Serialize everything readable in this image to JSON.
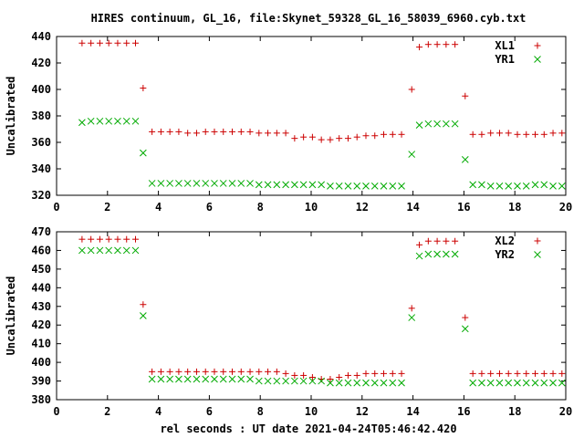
{
  "chart_data": {
    "title": "HIRES continuum, GL_16, file:Skynet_59328_GL_16_58039_6960.cyb.txt",
    "xlabel": "rel seconds : UT date 2021-04-24T05:46:42.420",
    "type": "scatter",
    "x": [
      1.0,
      1.35,
      1.7,
      2.05,
      2.4,
      2.75,
      3.1,
      3.4,
      3.75,
      4.1,
      4.45,
      4.8,
      5.15,
      5.5,
      5.85,
      6.2,
      6.55,
      6.9,
      7.25,
      7.6,
      7.95,
      8.3,
      8.65,
      9.0,
      9.35,
      9.7,
      10.05,
      10.4,
      10.75,
      11.1,
      11.45,
      11.8,
      12.15,
      12.5,
      12.85,
      13.2,
      13.55,
      13.95,
      14.25,
      14.6,
      14.95,
      15.3,
      15.65,
      16.05,
      16.35,
      16.7,
      17.05,
      17.4,
      17.75,
      18.1,
      18.45,
      18.8,
      19.15,
      19.5,
      19.85
    ],
    "panels": [
      {
        "ylabel": "Uncalibrated",
        "ylim": [
          320,
          440
        ],
        "yticks": [
          320,
          340,
          360,
          380,
          400,
          420,
          440
        ],
        "xlim": [
          0,
          20
        ],
        "xticks": [
          0,
          2,
          4,
          6,
          8,
          10,
          12,
          14,
          16,
          18,
          20
        ],
        "legend_position": "top-right",
        "series": [
          {
            "name": "XL1",
            "marker": "plus",
            "color": "#cc0000",
            "values": [
              435,
              435,
              435,
              435,
              435,
              435,
              435,
              401,
              368,
              368,
              368,
              368,
              367,
              367,
              368,
              368,
              368,
              368,
              368,
              368,
              367,
              367,
              367,
              367,
              363,
              364,
              364,
              362,
              362,
              363,
              363,
              364,
              365,
              365,
              366,
              366,
              366,
              400,
              432,
              434,
              434,
              434,
              434,
              395,
              366,
              366,
              367,
              367,
              367,
              366,
              366,
              366,
              366,
              367,
              367
            ]
          },
          {
            "name": "YR1",
            "marker": "cross",
            "color": "#00aa00",
            "values": [
              375,
              376,
              376,
              376,
              376,
              376,
              376,
              352,
              329,
              329,
              329,
              329,
              329,
              329,
              329,
              329,
              329,
              329,
              329,
              329,
              328,
              328,
              328,
              328,
              328,
              328,
              328,
              328,
              327,
              327,
              327,
              327,
              327,
              327,
              327,
              327,
              327,
              351,
              373,
              374,
              374,
              374,
              374,
              347,
              328,
              328,
              327,
              327,
              327,
              327,
              327,
              328,
              328,
              327,
              327
            ]
          }
        ]
      },
      {
        "ylabel": "Uncalibrated",
        "ylim": [
          380,
          470
        ],
        "yticks": [
          380,
          390,
          400,
          410,
          420,
          430,
          440,
          450,
          460,
          470
        ],
        "xlim": [
          0,
          20
        ],
        "xticks": [
          0,
          2,
          4,
          6,
          8,
          10,
          12,
          14,
          16,
          18,
          20
        ],
        "legend_position": "top-right",
        "series": [
          {
            "name": "XL2",
            "marker": "plus",
            "color": "#cc0000",
            "values": [
              466,
              466,
              466,
              466,
              466,
              466,
              466,
              431,
              395,
              395,
              395,
              395,
              395,
              395,
              395,
              395,
              395,
              395,
              395,
              395,
              395,
              395,
              395,
              394,
              393,
              393,
              392,
              391,
              391,
              392,
              393,
              393,
              394,
              394,
              394,
              394,
              394,
              429,
              463,
              465,
              465,
              465,
              465,
              424,
              394,
              394,
              394,
              394,
              394,
              394,
              394,
              394,
              394,
              394,
              394
            ]
          },
          {
            "name": "YR2",
            "marker": "cross",
            "color": "#00aa00",
            "values": [
              460,
              460,
              460,
              460,
              460,
              460,
              460,
              425,
              391,
              391,
              391,
              391,
              391,
              391,
              391,
              391,
              391,
              391,
              391,
              391,
              390,
              390,
              390,
              390,
              390,
              390,
              390,
              390,
              389,
              389,
              389,
              389,
              389,
              389,
              389,
              389,
              389,
              424,
              457,
              458,
              458,
              458,
              458,
              418,
              389,
              389,
              389,
              389,
              389,
              389,
              389,
              389,
              389,
              389,
              389
            ]
          }
        ]
      }
    ]
  }
}
